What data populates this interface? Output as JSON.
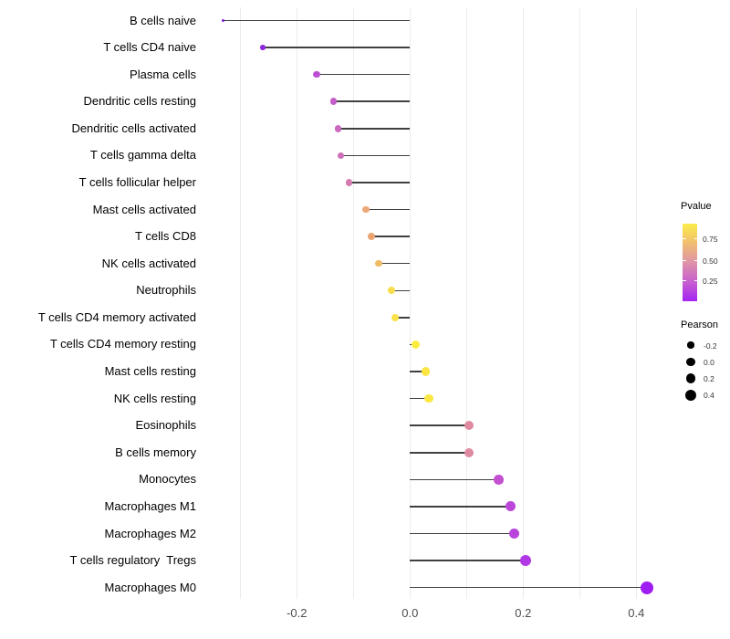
{
  "chart_data": {
    "type": "bar",
    "variant": "horizontal-lollipop",
    "title": "",
    "xlabel": "",
    "ylabel": "",
    "xlim": [
      -0.37,
      0.46
    ],
    "grid": "vertical-only",
    "gridline_values": [
      -0.3,
      -0.2,
      -0.1,
      0.0,
      0.1,
      0.2,
      0.3,
      0.4
    ],
    "x_ticks": [
      {
        "v": -0.2,
        "label": "-0.2"
      },
      {
        "v": 0.0,
        "label": "0.0"
      },
      {
        "v": 0.2,
        "label": "0.2"
      },
      {
        "v": 0.4,
        "label": "0.4"
      }
    ],
    "series_name": "Pearson correlation (color = Pvalue)",
    "points": [
      {
        "category": "B cells naive",
        "pearson": -0.33,
        "color": "#7a1fd8",
        "size": 3
      },
      {
        "category": "T cells CD4 naive",
        "pearson": -0.26,
        "color": "#8f2adb",
        "size": 5.5
      },
      {
        "category": "Plasma cells",
        "pearson": -0.165,
        "color": "#bc50d2",
        "size": 7.5
      },
      {
        "category": "Dendritic cells resting",
        "pearson": -0.135,
        "color": "#c45dc9",
        "size": 7.5
      },
      {
        "category": "Dendritic cells activated",
        "pearson": -0.127,
        "color": "#cb68c0",
        "size": 7.5
      },
      {
        "category": "T cells gamma delta",
        "pearson": -0.122,
        "color": "#ce6fba",
        "size": 7.5
      },
      {
        "category": "T cells follicular helper",
        "pearson": -0.108,
        "color": "#d57dae",
        "size": 7.5
      },
      {
        "category": "Mast cells activated",
        "pearson": -0.078,
        "color": "#eba878",
        "size": 7.5
      },
      {
        "category": "T cells CD8",
        "pearson": -0.068,
        "color": "#eaa471",
        "size": 8
      },
      {
        "category": "NK cells activated",
        "pearson": -0.055,
        "color": "#efbc65",
        "size": 7.5
      },
      {
        "category": "Neutrophils",
        "pearson": -0.032,
        "color": "#f7dc4c",
        "size": 8
      },
      {
        "category": "T cells CD4 memory activated",
        "pearson": -0.027,
        "color": "#f9e148",
        "size": 8
      },
      {
        "category": "T cells CD4 memory resting",
        "pearson": 0.01,
        "color": "#fcec3e",
        "size": 9
      },
      {
        "category": "Mast cells resting",
        "pearson": 0.028,
        "color": "#fae544",
        "size": 9.5
      },
      {
        "category": "NK cells resting",
        "pearson": 0.033,
        "color": "#fae744",
        "size": 9.5
      },
      {
        "category": "Eosinophils",
        "pearson": 0.104,
        "color": "#e0899f",
        "size": 10
      },
      {
        "category": "B cells memory",
        "pearson": 0.104,
        "color": "#df8aa1",
        "size": 10
      },
      {
        "category": "Monocytes",
        "pearson": 0.157,
        "color": "#c44fd1",
        "size": 10.5
      },
      {
        "category": "Macrophages M1",
        "pearson": 0.178,
        "color": "#bb47d9",
        "size": 11
      },
      {
        "category": "Macrophages M2",
        "pearson": 0.184,
        "color": "#b944dc",
        "size": 11
      },
      {
        "category": "T cells regulatory  Tregs",
        "pearson": 0.204,
        "color": "#b138e5",
        "size": 12
      },
      {
        "category": "Macrophages M0",
        "pearson": 0.419,
        "color": "#9f1cf0",
        "size": 14
      }
    ]
  },
  "legends": {
    "pvalue": {
      "title": "Pvalue",
      "gradient_stops": [
        "#a424f3",
        "#c75fce",
        "#de93a8",
        "#f1be70",
        "#fbec49"
      ],
      "ticks": [
        {
          "label": "0.75",
          "offset": 16
        },
        {
          "label": "0.50",
          "offset": 40
        },
        {
          "label": "0.25",
          "offset": 62
        }
      ]
    },
    "pearson": {
      "title": "Pearson",
      "entries": [
        {
          "label": "-0.2",
          "size": 7.3
        },
        {
          "label": "0.0",
          "size": 9.3
        },
        {
          "label": "0.2",
          "size": 10.7
        },
        {
          "label": "0.4",
          "size": 12
        }
      ]
    }
  }
}
